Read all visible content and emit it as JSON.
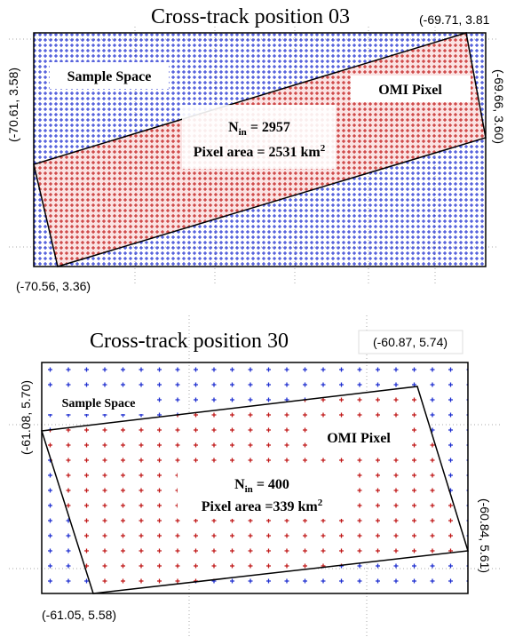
{
  "panels": [
    {
      "title": "Cross-track position 03",
      "corners": {
        "top_right": "(-69.71, 3.81",
        "left": "(-70.61, 3.58)",
        "right": "(-69.66, 3.60)",
        "bottom_left": "(-70.56, 3.36)"
      },
      "labels": {
        "sample_space": "Sample Space",
        "omi_pixel": "OMI Pixel"
      },
      "stats": {
        "n_symbol": "N",
        "n_subscript": "in",
        "n_value": " = 2957",
        "area_text": "Pixel area = 2531 km",
        "area_superscript": "2"
      }
    },
    {
      "title": "Cross-track position 30",
      "corners": {
        "top_right": "(-60.87, 5.74)",
        "left": "(-61.08, 5.70)",
        "right": "(-60.84, 5.61)",
        "bottom_left": "(-61.05, 5.58)"
      },
      "labels": {
        "sample_space": "Sample Space",
        "omi_pixel": "OMI Pixel"
      },
      "stats": {
        "n_symbol": "N",
        "n_subscript": "in",
        "n_value": " = 400",
        "area_text": "Pixel area =339 km",
        "area_superscript": "2"
      }
    }
  ]
}
